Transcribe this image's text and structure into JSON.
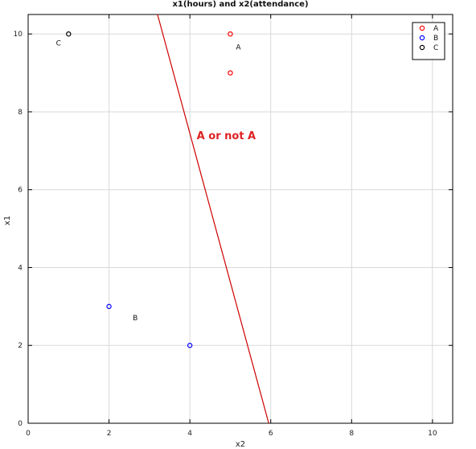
{
  "chart_data": {
    "type": "scatter",
    "title": "x1(hours) and x2(attendance)",
    "xlabel": "x2",
    "ylabel": "x1",
    "xlim": [
      0,
      10.5
    ],
    "ylim": [
      0,
      10.5
    ],
    "xticks": [
      "0",
      "2",
      "4",
      "6",
      "8",
      "10"
    ],
    "yticks": [
      "0",
      "2",
      "4",
      "6",
      "8",
      "10"
    ],
    "grid": true,
    "legend_position": "top-right",
    "series": [
      {
        "name": "A",
        "color": "#ff0000",
        "points": [
          {
            "x": 5,
            "y": 10
          },
          {
            "x": 5,
            "y": 9
          }
        ]
      },
      {
        "name": "B",
        "color": "#0000ff",
        "points": [
          {
            "x": 2,
            "y": 3
          },
          {
            "x": 4,
            "y": 2
          }
        ]
      },
      {
        "name": "C",
        "color": "#000000",
        "points": [
          {
            "x": 1,
            "y": 10
          }
        ]
      }
    ],
    "line": {
      "color": "#cc0000",
      "points": [
        {
          "x": 3.2,
          "y": 10.5
        },
        {
          "x": 5.95,
          "y": 0
        }
      ]
    },
    "annotations": [
      {
        "text": "A",
        "x": 5.2,
        "y": 9.6,
        "color": "#111111",
        "style": "normal"
      },
      {
        "text": "B",
        "x": 2.65,
        "y": 2.65,
        "color": "#111111",
        "style": "normal"
      },
      {
        "text": "C",
        "x": 0.75,
        "y": 9.7,
        "color": "#111111",
        "style": "normal"
      },
      {
        "text": "A or not A",
        "x": 4.9,
        "y": 7.3,
        "color": "#dd2222",
        "style": "highlight"
      }
    ]
  }
}
